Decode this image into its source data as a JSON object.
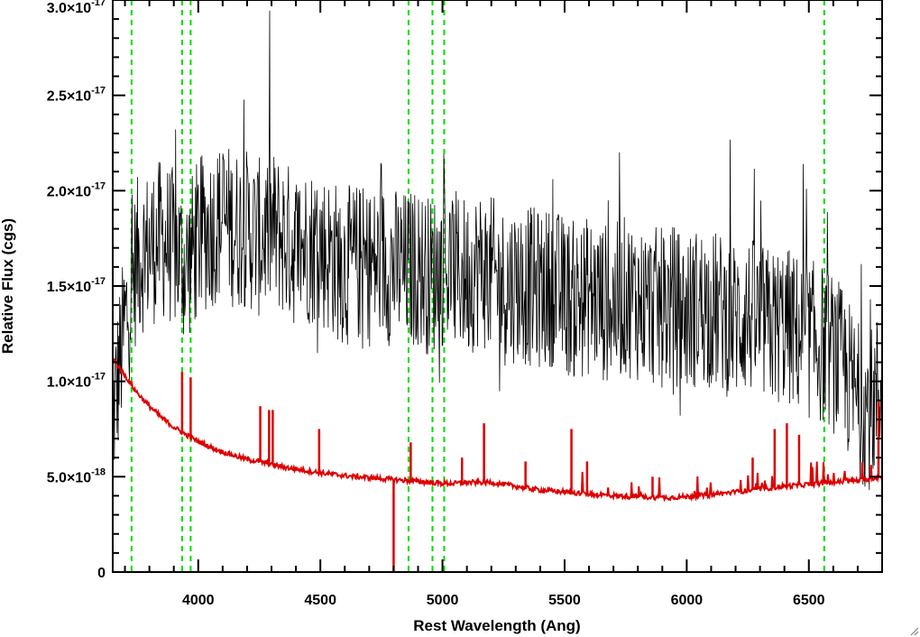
{
  "chart_data": {
    "type": "line",
    "xlabel": "Rest Wavelength (Ang)",
    "ylabel": "Relative Flux (cgs)",
    "xlim": [
      3650,
      6800
    ],
    "ylim": [
      0,
      3e-17
    ],
    "x_ticks": [
      {
        "value": 4000,
        "label": "4000"
      },
      {
        "value": 4500,
        "label": "4500"
      },
      {
        "value": 5000,
        "label": "5000"
      },
      {
        "value": 5500,
        "label": "5500"
      },
      {
        "value": 6000,
        "label": "6000"
      },
      {
        "value": 6500,
        "label": "6500"
      }
    ],
    "y_ticks": [
      {
        "value": 0,
        "mant": "0",
        "exp": ""
      },
      {
        "value": 5e-18,
        "mant": "5.0×10",
        "exp": "-18"
      },
      {
        "value": 1e-17,
        "mant": "1.0×10",
        "exp": "-17"
      },
      {
        "value": 1.5e-17,
        "mant": "1.5×10",
        "exp": "-17"
      },
      {
        "value": 2e-17,
        "mant": "2.0×10",
        "exp": "-17"
      },
      {
        "value": 2.5e-17,
        "mant": "2.5×10",
        "exp": "-17"
      },
      {
        "value": 3e-17,
        "mant": "3.0×10",
        "exp": "-17"
      }
    ],
    "grid": false,
    "colors": {
      "observed": "#000000",
      "model": "#dd0000",
      "lines": "#00dd00"
    },
    "marker_lines": [
      3727,
      3934,
      3969,
      4861,
      4959,
      5007,
      6563
    ],
    "series": [
      {
        "key": "observed",
        "x": [
          3650,
          3700,
          3750,
          3800,
          3850,
          3900,
          3950,
          4000,
          4050,
          4100,
          4150,
          4200,
          4250,
          4300,
          4350,
          4400,
          4450,
          4500,
          4550,
          4600,
          4650,
          4700,
          4750,
          4800,
          4850,
          4900,
          4950,
          5000,
          5050,
          5100,
          5150,
          5200,
          5250,
          5300,
          5350,
          5400,
          5450,
          5500,
          5550,
          5600,
          5650,
          5700,
          5750,
          5800,
          5850,
          5900,
          5950,
          6000,
          6050,
          6100,
          6150,
          6200,
          6250,
          6300,
          6350,
          6400,
          6450,
          6500,
          6550,
          6600,
          6650,
          6700,
          6750,
          6800
        ],
        "y": [
          8e-18,
          1.3e-17,
          1.65e-17,
          1.7e-17,
          1.75e-17,
          1.7e-17,
          1.6e-17,
          1.75e-17,
          1.8e-17,
          1.85e-17,
          1.8e-17,
          1.8e-17,
          1.75e-17,
          1.8e-17,
          1.75e-17,
          1.7e-17,
          1.72e-17,
          1.7e-17,
          1.65e-17,
          1.6e-17,
          1.62e-17,
          1.6e-17,
          1.62e-17,
          1.6e-17,
          1.58e-17,
          1.6e-17,
          1.55e-17,
          1.6e-17,
          1.58e-17,
          1.55e-17,
          1.6e-17,
          1.55e-17,
          1.5e-17,
          1.52e-17,
          1.5e-17,
          1.48e-17,
          1.5e-17,
          1.45e-17,
          1.42e-17,
          1.45e-17,
          1.42e-17,
          1.4e-17,
          1.45e-17,
          1.42e-17,
          1.4e-17,
          1.38e-17,
          1.4e-17,
          1.35e-17,
          1.4e-17,
          1.38e-17,
          1.35e-17,
          1.32e-17,
          1.35e-17,
          1.3e-17,
          1.28e-17,
          1.3e-17,
          1.25e-17,
          1.22e-17,
          1.2e-17,
          1.15e-17,
          1.05e-17,
          9e-18,
          8.5e-18,
          1e-17
        ]
      },
      {
        "key": "model",
        "x": [
          3650,
          3700,
          3750,
          3800,
          3850,
          3900,
          3950,
          4000,
          4050,
          4100,
          4150,
          4200,
          4250,
          4300,
          4350,
          4400,
          4450,
          4500,
          4600,
          4700,
          4800,
          4850,
          4900,
          4950,
          5000,
          5050,
          5100,
          5150,
          5200,
          5250,
          5300,
          5400,
          5500,
          5600,
          5700,
          5800,
          5900,
          6000,
          6100,
          6200,
          6300,
          6400,
          6500,
          6600,
          6700,
          6800
        ],
        "y": [
          1.12e-17,
          1.03e-17,
          9.4e-18,
          8.7e-18,
          8.1e-18,
          7.6e-18,
          7.2e-18,
          6.85e-18,
          6.55e-18,
          6.3e-18,
          6.1e-18,
          5.9e-18,
          5.8e-18,
          5.65e-18,
          5.5e-18,
          5.4e-18,
          5.3e-18,
          5.2e-18,
          5.05e-18,
          4.95e-18,
          4.85e-18,
          4.8e-18,
          4.75e-18,
          4.7e-18,
          4.65e-18,
          4.65e-18,
          4.7e-18,
          4.7e-18,
          4.7e-18,
          4.6e-18,
          4.5e-18,
          4.3e-18,
          4.2e-18,
          4.1e-18,
          4e-18,
          3.95e-18,
          3.9e-18,
          3.95e-18,
          4.05e-18,
          4.2e-18,
          4.35e-18,
          4.5e-18,
          4.6e-18,
          4.7e-18,
          4.8e-18,
          5e-18
        ]
      }
    ],
    "model_emission_lines": [
      {
        "x": 3934,
        "y": 1.05e-17
      },
      {
        "x": 3969,
        "y": 1.02e-17
      },
      {
        "x": 4254,
        "y": 8.7e-18
      },
      {
        "x": 4290,
        "y": 8.5e-18
      },
      {
        "x": 4305,
        "y": 8.5e-18
      },
      {
        "x": 4495,
        "y": 7.5e-18
      },
      {
        "x": 4800,
        "y": 0
      },
      {
        "x": 4870,
        "y": 6.8e-18
      },
      {
        "x": 5080,
        "y": 6e-18
      },
      {
        "x": 5170,
        "y": 7.8e-18
      },
      {
        "x": 5340,
        "y": 5.8e-18
      },
      {
        "x": 5528,
        "y": 7.5e-18
      },
      {
        "x": 5592,
        "y": 5.8e-18
      },
      {
        "x": 5860,
        "y": 5e-18
      },
      {
        "x": 6270,
        "y": 6e-18
      },
      {
        "x": 6360,
        "y": 7.5e-18
      },
      {
        "x": 6410,
        "y": 7.8e-18
      },
      {
        "x": 6460,
        "y": 7.2e-18
      },
      {
        "x": 6785,
        "y": 9e-18
      }
    ]
  }
}
